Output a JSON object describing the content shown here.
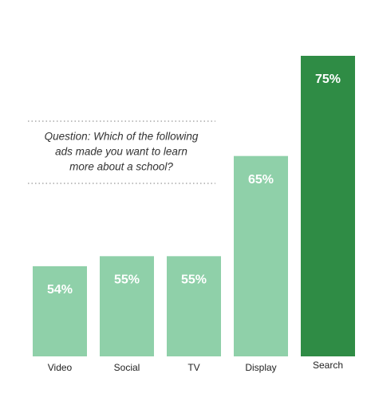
{
  "chart_data": {
    "type": "bar",
    "annotation": [
      "Question: Which of the following",
      "ads made you want to learn",
      "more about a school?"
    ],
    "categories": [
      "Video",
      "Social",
      "TV",
      "Display",
      "Search"
    ],
    "values": [
      54,
      55,
      55,
      65,
      75
    ],
    "value_labels": [
      "54%",
      "55%",
      "55%",
      "65%",
      "75%"
    ],
    "colors": [
      "#8fd0a9",
      "#8fd0a9",
      "#8fd0a9",
      "#8fd0a9",
      "#2f8c45"
    ],
    "ylim": [
      45,
      75
    ]
  }
}
